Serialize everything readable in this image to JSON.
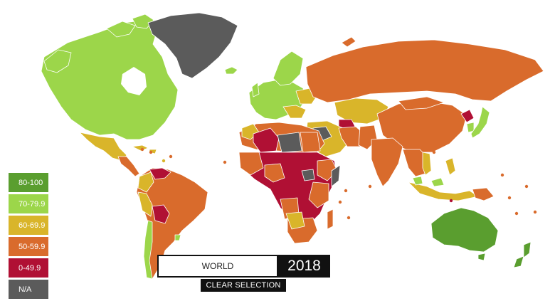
{
  "colors": {
    "c80": "#5a9e2f",
    "c70": "#9cd64a",
    "c60": "#d9b52a",
    "c50": "#d96b2c",
    "c0": "#b01034",
    "na": "#5b5b5b"
  },
  "legend": [
    {
      "label": "80-100",
      "color": "#5a9e2f"
    },
    {
      "label": "70-79.9",
      "color": "#9cd64a"
    },
    {
      "label": "60-69.9",
      "color": "#d9b52a"
    },
    {
      "label": "50-59.9",
      "color": "#d96b2c"
    },
    {
      "label": "0-49.9",
      "color": "#b01034"
    },
    {
      "label": "N/A",
      "color": "#5b5b5b"
    }
  ],
  "region_selector": {
    "value": "WORLD"
  },
  "year": "2018",
  "clear_selection_label": "CLEAR SELECTION"
}
